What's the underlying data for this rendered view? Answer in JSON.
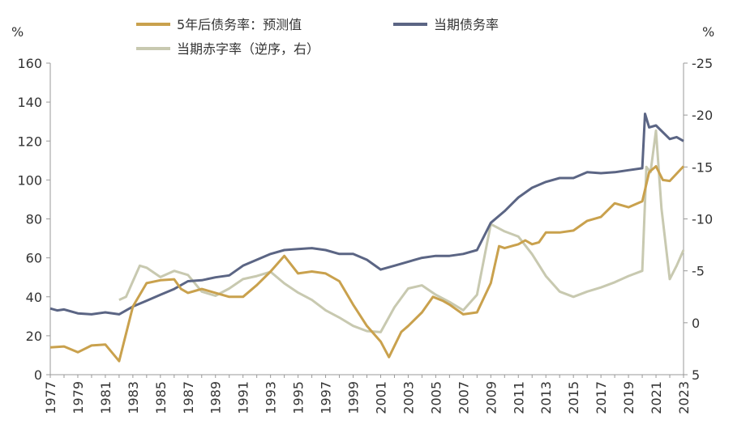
{
  "chart_data": {
    "type": "line",
    "left_axis": {
      "unit_label": "%",
      "ylim": [
        0,
        160
      ],
      "ticks": [
        0,
        20,
        40,
        60,
        80,
        100,
        120,
        140,
        160
      ]
    },
    "right_axis": {
      "unit_label": "%",
      "ylim": [
        5,
        -25
      ],
      "reversed": true,
      "ticks": [
        5,
        0,
        -5,
        -10,
        -15,
        -20,
        -25
      ]
    },
    "x_axis": {
      "xlim": [
        1977,
        2023
      ],
      "ticks": [
        "1977",
        "1979",
        "1981",
        "1983",
        "1985",
        "1987",
        "1989",
        "1991",
        "1993",
        "1995",
        "1997",
        "1999",
        "2001",
        "2003",
        "2005",
        "2007",
        "2009",
        "2011",
        "2013",
        "2015",
        "2017",
        "2019",
        "2021",
        "2023"
      ]
    },
    "legend": {
      "placement": "top-center"
    },
    "series": [
      {
        "name": "5年后债务率：预测值",
        "axis": "left",
        "color": "#C9A14D",
        "points": [
          [
            1977,
            14
          ],
          [
            1978,
            14.5
          ],
          [
            1979,
            11.5
          ],
          [
            1980,
            15
          ],
          [
            1981,
            15.5
          ],
          [
            1982,
            7
          ],
          [
            1983,
            35
          ],
          [
            1984,
            47
          ],
          [
            1985,
            48.5
          ],
          [
            1986,
            49
          ],
          [
            1986.5,
            44
          ],
          [
            1987,
            42
          ],
          [
            1987.5,
            43
          ],
          [
            1988,
            44
          ],
          [
            1989,
            42
          ],
          [
            1990,
            40
          ],
          [
            1991,
            40
          ],
          [
            1992,
            46
          ],
          [
            1993,
            53
          ],
          [
            1994,
            61
          ],
          [
            1995,
            52
          ],
          [
            1996,
            53
          ],
          [
            1997,
            52
          ],
          [
            1998,
            48
          ],
          [
            1999,
            36
          ],
          [
            2000,
            25
          ],
          [
            2001,
            17
          ],
          [
            2001.6,
            9
          ],
          [
            2002.5,
            22
          ],
          [
            2003,
            25
          ],
          [
            2004,
            32
          ],
          [
            2004.8,
            40
          ],
          [
            2005.5,
            38
          ],
          [
            2006,
            36
          ],
          [
            2007,
            31
          ],
          [
            2008,
            32
          ],
          [
            2009,
            47
          ],
          [
            2009.6,
            66
          ],
          [
            2010,
            65
          ],
          [
            2011,
            67
          ],
          [
            2011.5,
            69
          ],
          [
            2012,
            67
          ],
          [
            2012.5,
            68
          ],
          [
            2013,
            73
          ],
          [
            2014,
            73
          ],
          [
            2015,
            74
          ],
          [
            2016,
            79
          ],
          [
            2017,
            81
          ],
          [
            2018,
            88
          ],
          [
            2019,
            86
          ],
          [
            2020,
            89
          ],
          [
            2020.5,
            104
          ],
          [
            2021,
            107
          ],
          [
            2021.5,
            100
          ],
          [
            2022,
            99.5
          ],
          [
            2023,
            107
          ]
        ]
      },
      {
        "name": "当期债务率",
        "axis": "left",
        "color": "#5B6584",
        "points": [
          [
            1977,
            34
          ],
          [
            1977.5,
            33
          ],
          [
            1978,
            33.5
          ],
          [
            1979,
            31.5
          ],
          [
            1980,
            31
          ],
          [
            1981,
            32
          ],
          [
            1982,
            31
          ],
          [
            1983,
            35
          ],
          [
            1984,
            38
          ],
          [
            1985,
            41
          ],
          [
            1986,
            44
          ],
          [
            1987,
            48
          ],
          [
            1988,
            48.5
          ],
          [
            1989,
            50
          ],
          [
            1990,
            51
          ],
          [
            1991,
            56
          ],
          [
            1992,
            59
          ],
          [
            1993,
            62
          ],
          [
            1994,
            64
          ],
          [
            1995,
            64.5
          ],
          [
            1996,
            65
          ],
          [
            1997,
            64
          ],
          [
            1998,
            62
          ],
          [
            1999,
            62
          ],
          [
            2000,
            59
          ],
          [
            2001,
            54
          ],
          [
            2002,
            56
          ],
          [
            2003,
            58
          ],
          [
            2004,
            60
          ],
          [
            2005,
            61
          ],
          [
            2006,
            61
          ],
          [
            2007,
            62
          ],
          [
            2008,
            64
          ],
          [
            2009,
            78
          ],
          [
            2010,
            84
          ],
          [
            2011,
            91
          ],
          [
            2012,
            96
          ],
          [
            2013,
            99
          ],
          [
            2014,
            101
          ],
          [
            2015,
            101
          ],
          [
            2016,
            104
          ],
          [
            2017,
            103.5
          ],
          [
            2018,
            104
          ],
          [
            2019,
            105
          ],
          [
            2020,
            106
          ],
          [
            2020.2,
            134
          ],
          [
            2020.5,
            127
          ],
          [
            2021,
            128
          ],
          [
            2022,
            121
          ],
          [
            2022.5,
            122
          ],
          [
            2023,
            120
          ]
        ]
      },
      {
        "name": "当期赤字率（逆序，右）",
        "axis": "right",
        "color": "#C8C9B0",
        "points": [
          [
            1982,
            -2.2
          ],
          [
            1982.5,
            -2.5
          ],
          [
            1983,
            -4
          ],
          [
            1983.5,
            -5.5
          ],
          [
            1984,
            -5.3
          ],
          [
            1985,
            -4.4
          ],
          [
            1986,
            -5
          ],
          [
            1987,
            -4.6
          ],
          [
            1988,
            -3
          ],
          [
            1989,
            -2.6
          ],
          [
            1990,
            -3.3
          ],
          [
            1991,
            -4.2
          ],
          [
            1992,
            -4.5
          ],
          [
            1993,
            -4.9
          ],
          [
            1994,
            -3.8
          ],
          [
            1995,
            -2.9
          ],
          [
            1996,
            -2.2
          ],
          [
            1997,
            -1.2
          ],
          [
            1998,
            -0.5
          ],
          [
            1999,
            0.3
          ],
          [
            2000,
            0.8
          ],
          [
            2001,
            0.9
          ],
          [
            2002,
            -1.5
          ],
          [
            2003,
            -3.3
          ],
          [
            2004,
            -3.6
          ],
          [
            2005,
            -2.7
          ],
          [
            2006,
            -2
          ],
          [
            2007,
            -1.2
          ],
          [
            2008,
            -2.7
          ],
          [
            2009,
            -9.5
          ],
          [
            2010,
            -8.8
          ],
          [
            2011,
            -8.3
          ],
          [
            2012,
            -6.6
          ],
          [
            2013,
            -4.5
          ],
          [
            2014,
            -3
          ],
          [
            2015,
            -2.5
          ],
          [
            2016,
            -3
          ],
          [
            2017,
            -3.4
          ],
          [
            2018,
            -3.9
          ],
          [
            2019,
            -4.5
          ],
          [
            2020,
            -5
          ],
          [
            2020.3,
            -15
          ],
          [
            2020.6,
            -14.5
          ],
          [
            2021,
            -18.5
          ],
          [
            2021.4,
            -11
          ],
          [
            2022,
            -4.2
          ],
          [
            2022.5,
            -5.5
          ],
          [
            2023,
            -7
          ]
        ]
      }
    ]
  }
}
